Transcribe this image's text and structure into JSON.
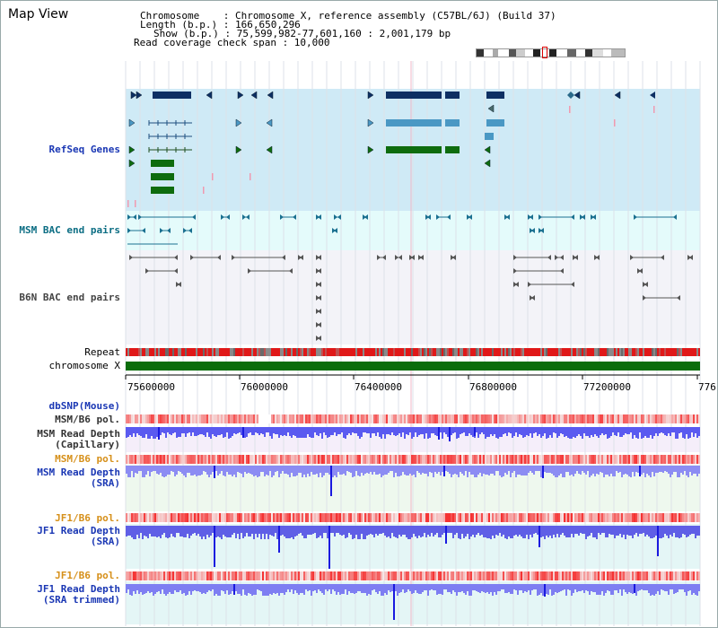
{
  "view_title": "Map View",
  "header": {
    "line1": "Chromosome    : Chromosome X, reference assembly (C57BL/6J) (Build 37)",
    "line2": "Length (b.p.) : 166,650,296",
    "line3": "Show (b.p.) : 75,599,982-77,601,160 : 2,001,179 bp",
    "line4": "Read coverage check span : 10,000"
  },
  "tracks": {
    "refseq": "RefSeq Genes",
    "msm_bac": "MSM BAC end pairs",
    "b6n_bac": "B6N BAC end pairs",
    "repeat": "Repeat",
    "chromosome": "chromosome X",
    "dbsnp": "dbSNP(Mouse)",
    "msm_pol_1": "MSM/B6 pol.",
    "msm_depth_cap_1": "MSM Read Depth",
    "msm_depth_cap_2": "(Capillary)",
    "msm_pol_2": "MSM/B6 pol.",
    "msm_depth_sra_1": "MSM Read Depth",
    "msm_depth_sra_2": "(SRA)",
    "jf1_pol_1": "JF1/B6 pol.",
    "jf1_depth_sra_1": "JF1 Read Depth",
    "jf1_depth_sra_2": "(SRA)",
    "jf1_pol_2": "JF1/B6 pol.",
    "jf1_depth_trim_1": "JF1 Read Depth",
    "jf1_depth_trim_2": "(SRA trimmed)"
  },
  "axis": {
    "ticks": [
      "75600000",
      "76000000",
      "76400000",
      "76800000",
      "77200000",
      "776"
    ]
  },
  "colors": {
    "refseq_bg": "#cfeaf6",
    "bac_bg": "#e4fbfb",
    "b6n_bg": "#f3f3f8",
    "gene_navy": "#0d2f63",
    "gene_blue": "#4a98c4",
    "gene_green": "#0e6c0e",
    "chrom_green": "#0b6d0b",
    "depth_blue": "#4f4fe6"
  }
}
